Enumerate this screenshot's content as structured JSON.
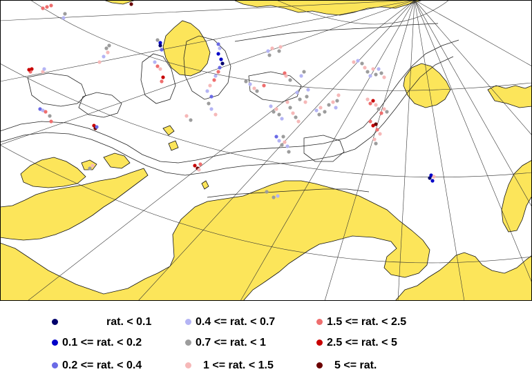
{
  "map": {
    "land_color": "#fce55a",
    "sea_color": "#ffffff",
    "coastline_color": "#111111",
    "contour_color": "#222222",
    "graticule_color": "#333333"
  },
  "legend": {
    "items": [
      {
        "label": "rat. < 0.1",
        "color": "#00006b"
      },
      {
        "label": "0.1 <= rat. < 0.2",
        "color": "#0000c8"
      },
      {
        "label": "0.2 <= rat. < 0.4",
        "color": "#6a6ae6"
      },
      {
        "label": "0.4 <= rat. < 0.7",
        "color": "#b4b4f4"
      },
      {
        "label": "0.7 <= rat. < 1",
        "color": "#9c9c9c"
      },
      {
        "label": "1 <= rat. < 1.5",
        "color": "#f6b8b8"
      },
      {
        "label": "1.5 <= rat. < 2.5",
        "color": "#ee6e6e"
      },
      {
        "label": "2.5 <= rat. < 5",
        "color": "#c80000"
      },
      {
        "label": "5 <= rat.",
        "color": "#6b0000"
      }
    ]
  }
}
